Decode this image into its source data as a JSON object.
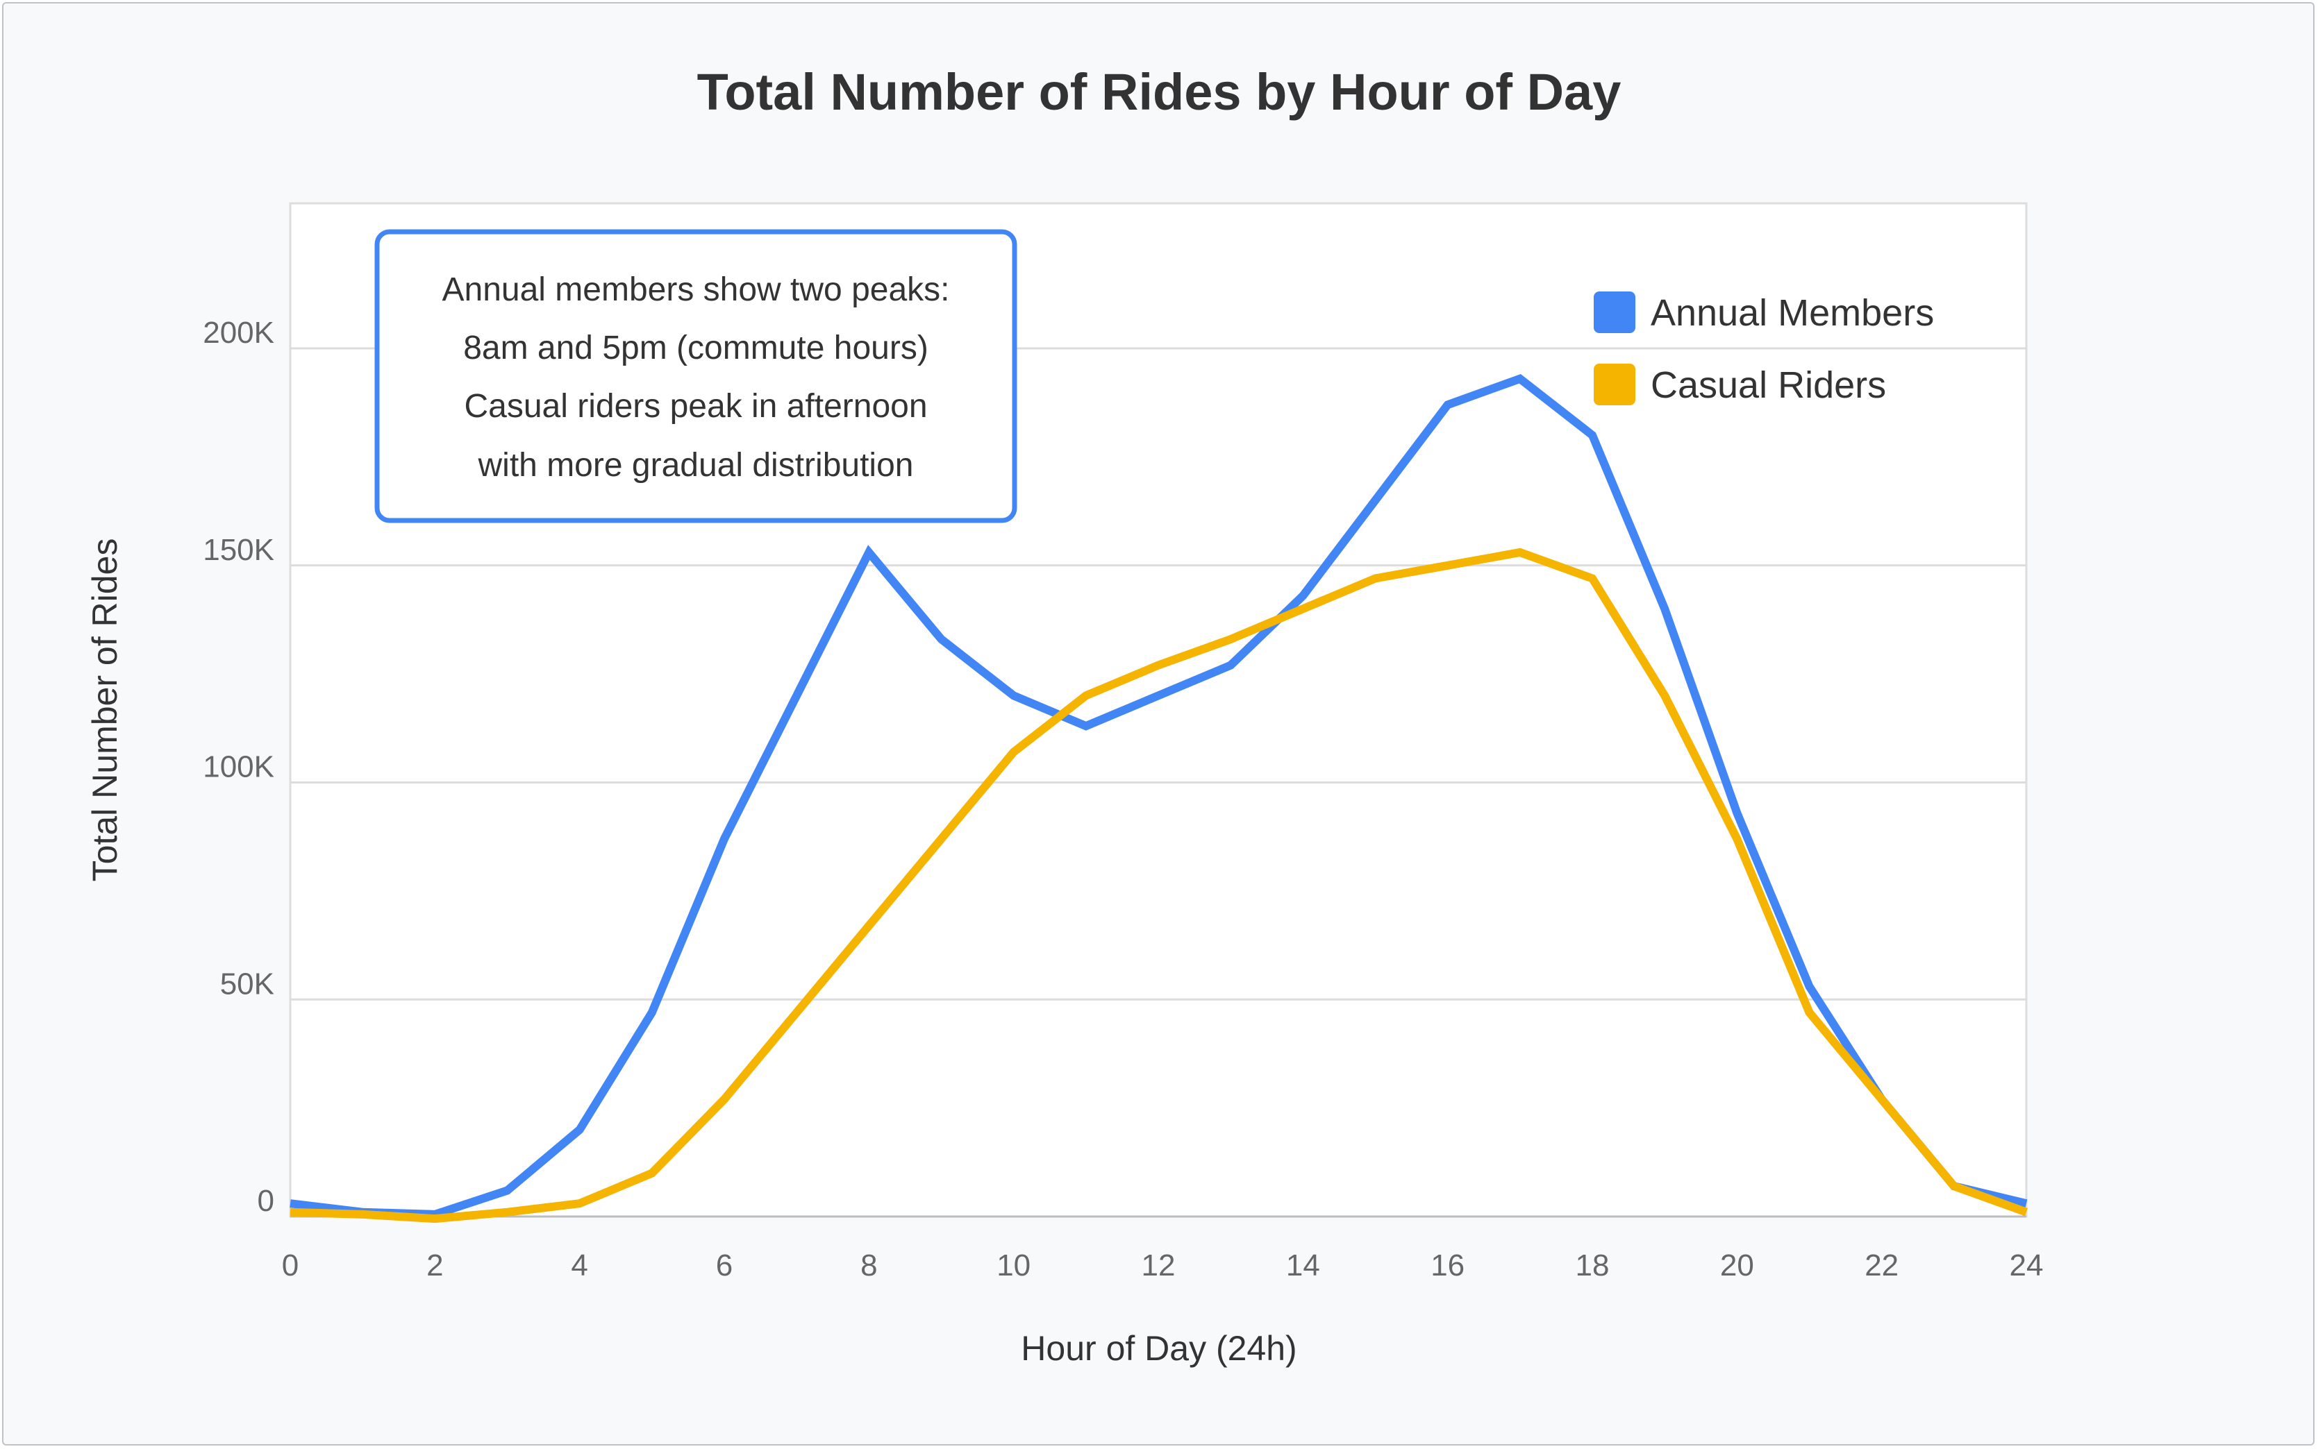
{
  "chart_data": {
    "type": "line",
    "title": "Total Number of Rides by Hour of Day",
    "xlabel": "Hour of Day (24h)",
    "ylabel": "Total Number of Rides",
    "xlim": [
      0,
      24
    ],
    "ylim": [
      0,
      200000
    ],
    "x_ticks": [
      0,
      2,
      4,
      6,
      8,
      10,
      12,
      14,
      16,
      18,
      20,
      22,
      24
    ],
    "y_ticks": [
      0,
      50000,
      100000,
      150000,
      200000
    ],
    "y_tick_labels": [
      "0",
      "50K",
      "100K",
      "150K",
      "200K"
    ],
    "grid": "horizontal",
    "legend_position": "top-right",
    "x": [
      0,
      1,
      2,
      3,
      4,
      5,
      6,
      7,
      8,
      9,
      10,
      11,
      12,
      13,
      14,
      15,
      16,
      17,
      18,
      19,
      20,
      21,
      22,
      23,
      24
    ],
    "series": [
      {
        "name": "Annual Members",
        "color": "#4285f4",
        "values": [
          3000,
          1000,
          500,
          6000,
          20000,
          47000,
          87000,
          120000,
          153000,
          133000,
          120000,
          113000,
          120000,
          127000,
          143000,
          165000,
          187000,
          193000,
          180000,
          140000,
          93000,
          53000,
          27000,
          7000,
          3000
        ]
      },
      {
        "name": "Casual Riders",
        "color": "#f4b400",
        "values": [
          1000,
          500,
          -500,
          1000,
          3000,
          10000,
          27000,
          47000,
          67000,
          87000,
          107000,
          120000,
          127000,
          133000,
          140000,
          147000,
          150000,
          153000,
          147000,
          120000,
          87000,
          47000,
          27000,
          7000,
          1000
        ]
      }
    ],
    "annotation": {
      "lines": [
        "Annual members show two peaks:",
        "8am and 5pm (commute hours)",
        "Casual riders peak in afternoon",
        "with more gradual distribution"
      ],
      "border_color": "#4285f4"
    }
  }
}
